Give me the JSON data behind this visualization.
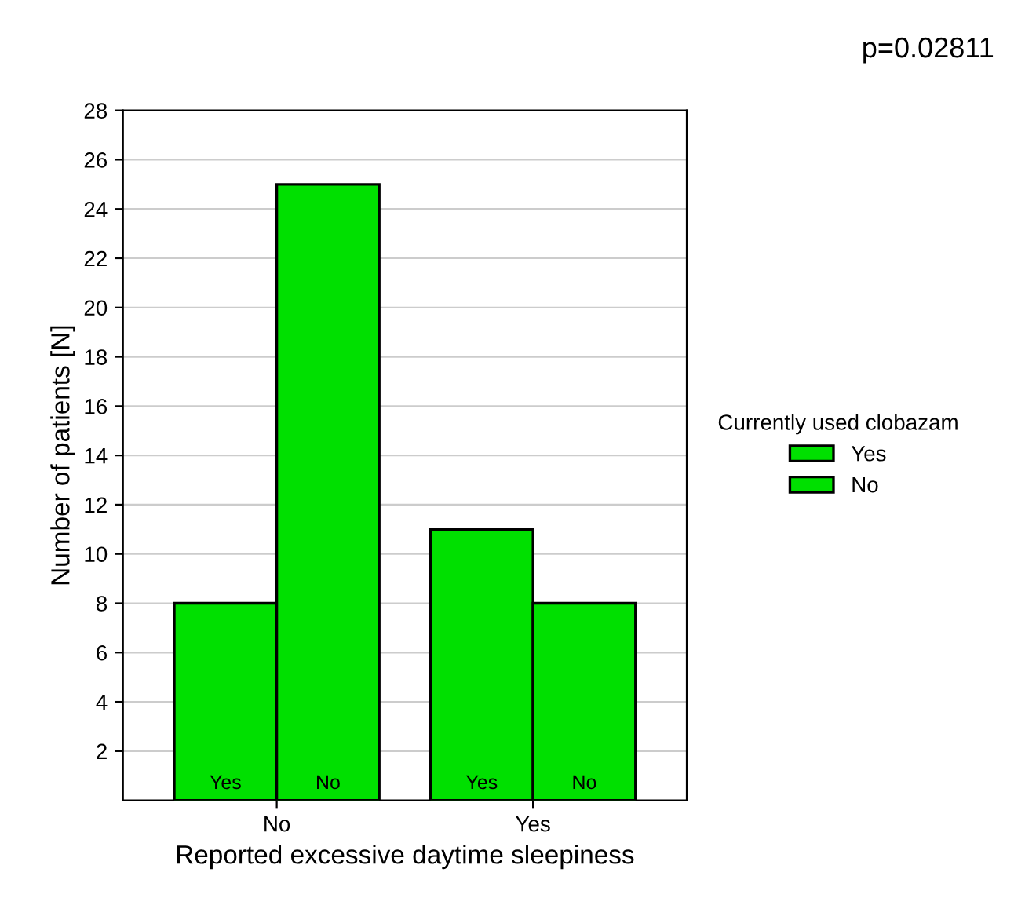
{
  "chart_data": {
    "type": "bar",
    "categories": [
      "No",
      "Yes"
    ],
    "xlabel": "Reported excessive daytime sleepiness",
    "ylabel": "Number of patients [N]",
    "legend_title": "Currently used clobazam",
    "series": [
      {
        "name": "Yes",
        "color": "#00e000",
        "values": [
          8,
          11
        ]
      },
      {
        "name": "No",
        "color": "#00e000",
        "values": [
          25,
          8
        ]
      }
    ],
    "ylim": [
      0,
      28
    ],
    "yticks": [
      2,
      4,
      6,
      8,
      10,
      12,
      14,
      16,
      18,
      20,
      22,
      24,
      26,
      28
    ],
    "grid": "y",
    "legend": "right",
    "annotations": [
      "p=0.02811"
    ]
  }
}
